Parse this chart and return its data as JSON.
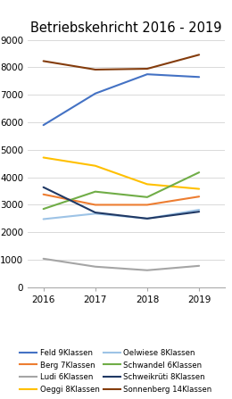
{
  "title": "Betriebskehricht 2016 - 2019",
  "years": [
    2016,
    2017,
    2018,
    2019
  ],
  "series": [
    {
      "label": "Feld 9Klassen",
      "values": [
        5900,
        7050,
        7750,
        7650
      ],
      "color": "#4472C4",
      "linewidth": 1.5
    },
    {
      "label": "Berg 7Klassen",
      "values": [
        3380,
        3000,
        3000,
        3300
      ],
      "color": "#ED7D31",
      "linewidth": 1.5
    },
    {
      "label": "Ludi 6Klassen",
      "values": [
        1040,
        750,
        620,
        780
      ],
      "color": "#A5A5A5",
      "linewidth": 1.5
    },
    {
      "label": "Oeggi 8Klassen",
      "values": [
        4720,
        4420,
        3750,
        3580
      ],
      "color": "#FFC000",
      "linewidth": 1.5
    },
    {
      "label": "Oelwiese 8Klassen",
      "values": [
        2480,
        2680,
        2500,
        2820
      ],
      "color": "#9DC3E6",
      "linewidth": 1.5
    },
    {
      "label": "Schwandel 6Klassen",
      "values": [
        2850,
        3480,
        3280,
        4180
      ],
      "color": "#70AD47",
      "linewidth": 1.5
    },
    {
      "label": "Schweikrüti 8Klassen",
      "values": [
        3640,
        2720,
        2500,
        2750
      ],
      "color": "#1F3864",
      "linewidth": 1.5
    },
    {
      "label": "Sonnenberg 14Klassen",
      "values": [
        8230,
        7920,
        7950,
        8460
      ],
      "color": "#843C0C",
      "linewidth": 1.5
    }
  ],
  "legend_order": [
    0,
    1,
    2,
    3,
    4,
    5,
    6,
    7
  ],
  "ylim": [
    0,
    9000
  ],
  "yticks": [
    0,
    1000,
    2000,
    3000,
    4000,
    5000,
    6000,
    7000,
    8000,
    9000
  ],
  "background_color": "#ffffff",
  "title_fontsize": 10.5,
  "tick_fontsize": 7.5,
  "legend_fontsize": 6.2
}
